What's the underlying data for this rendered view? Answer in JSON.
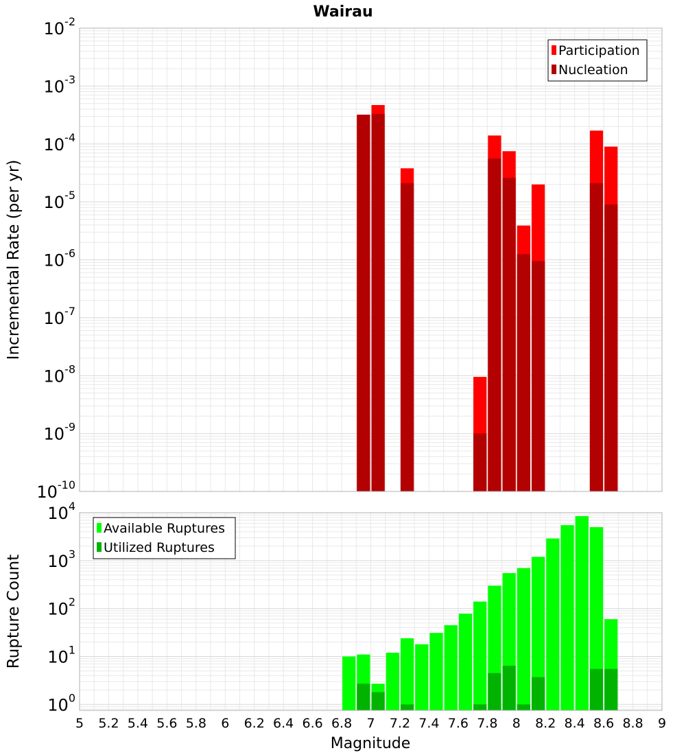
{
  "title": "Wairau",
  "x_axis": {
    "label": "Magnitude",
    "ticks": [
      "5",
      "5.2",
      "5.4",
      "5.6",
      "5.8",
      "6",
      "6.2",
      "6.4",
      "6.6",
      "6.8",
      "7",
      "7.2",
      "7.4",
      "7.6",
      "7.8",
      "8",
      "8.2",
      "8.4",
      "8.6",
      "8.8",
      "9"
    ],
    "range": [
      5,
      9
    ]
  },
  "colors": {
    "participation": "#ff0000",
    "nucleation": "#b30000",
    "available": "#00ff00",
    "utilized": "#00b300",
    "grid": "#e8e8e8",
    "plot_border": "#b0b0b0"
  },
  "chart_data": [
    {
      "type": "bar",
      "panel": "top",
      "ylabel": "Incremental Rate (per yr)",
      "yscale": "log",
      "ylim": [
        1e-10,
        0.01
      ],
      "y_tick_exponents": [
        -10,
        -9,
        -8,
        -7,
        -6,
        -5,
        -4,
        -3,
        -2
      ],
      "legend": {
        "placement": "top-right",
        "entries": [
          "Participation",
          "Nucleation"
        ]
      },
      "x": [
        6.95,
        7.05,
        7.25,
        7.75,
        7.85,
        7.95,
        8.05,
        8.15,
        8.55,
        8.65
      ],
      "series": [
        {
          "name": "Participation",
          "values": [
            0.00032,
            0.00047,
            3.8e-05,
            9.5e-09,
            0.00014,
            7.5e-05,
            3.9e-06,
            2e-05,
            0.00017,
            9e-05
          ]
        },
        {
          "name": "Nucleation",
          "values": [
            0.00032,
            0.00033,
            2.1e-05,
            1e-09,
            5.6e-05,
            2.6e-05,
            1.25e-06,
            9.5e-07,
            2.1e-05,
            9e-06
          ]
        }
      ]
    },
    {
      "type": "bar",
      "panel": "bottom",
      "ylabel": "Rupture Count",
      "yscale": "log",
      "ylim": [
        0.75,
        10000
      ],
      "y_tick_exponents": [
        0,
        1,
        2,
        3,
        4
      ],
      "legend": {
        "placement": "top-left",
        "entries": [
          "Available Ruptures",
          "Utilized Ruptures"
        ]
      },
      "x": [
        6.85,
        6.95,
        7.05,
        7.15,
        7.25,
        7.35,
        7.45,
        7.55,
        7.65,
        7.75,
        7.85,
        7.95,
        8.05,
        8.15,
        8.25,
        8.35,
        8.45,
        8.55,
        8.65
      ],
      "series": [
        {
          "name": "Available Ruptures",
          "values": [
            10,
            11,
            2.7,
            12,
            24,
            18,
            31,
            45,
            78,
            140,
            300,
            550,
            700,
            1200,
            2900,
            5500,
            8500,
            5000,
            60
          ]
        },
        {
          "name": "Utilized Ruptures",
          "values": [
            0,
            2.7,
            1.8,
            0,
            1,
            0,
            0,
            0,
            0,
            1,
            4.5,
            6.4,
            1,
            3.7,
            0,
            0,
            0,
            5.5,
            5.5
          ]
        }
      ]
    }
  ]
}
